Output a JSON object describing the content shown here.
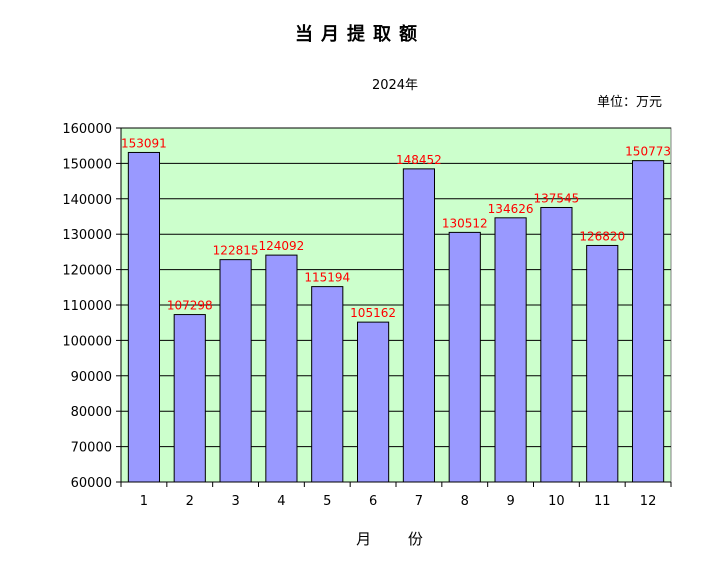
{
  "chart_data": {
    "type": "bar",
    "title": "当月提取额",
    "subtitle": "2024年",
    "unit_label": "单位：万元",
    "xlabel": "月 份",
    "ylabel": "",
    "categories": [
      "1",
      "2",
      "3",
      "4",
      "5",
      "6",
      "7",
      "8",
      "9",
      "10",
      "11",
      "12"
    ],
    "values": [
      153091,
      107298,
      122815,
      124092,
      115194,
      105162,
      148452,
      130512,
      134626,
      137545,
      126820,
      150773
    ],
    "data_labels": [
      "153091",
      "107298",
      "122815",
      "124092",
      "115194",
      "105162",
      "148452",
      "130512",
      "134626",
      "137545",
      "126820",
      "150773"
    ],
    "ylim": [
      60000,
      160000
    ],
    "yticks": [
      60000,
      70000,
      80000,
      90000,
      100000,
      110000,
      120000,
      130000,
      140000,
      150000,
      160000
    ],
    "ytick_labels": [
      "60000",
      "70000",
      "80000",
      "90000",
      "100000",
      "110000",
      "120000",
      "130000",
      "140000",
      "150000",
      "160000"
    ],
    "grid": true,
    "legend": "none",
    "colors": {
      "plot_background": "#ccffcc",
      "bar_fill": "#9999ff",
      "bar_stroke": "#000000",
      "data_label": "#ff0000",
      "gridline": "#000000"
    }
  }
}
